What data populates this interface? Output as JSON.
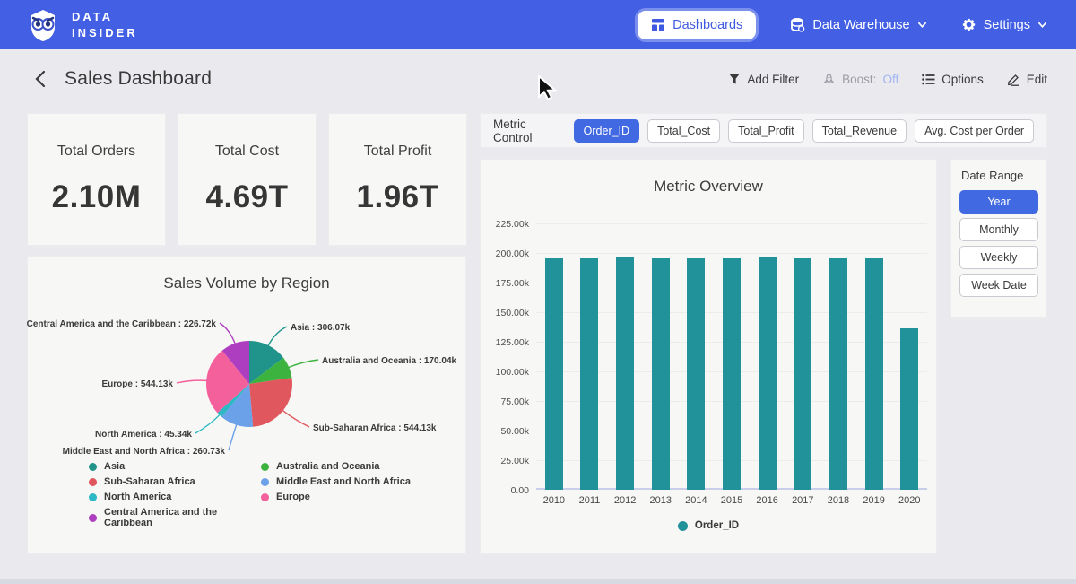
{
  "navbar": {
    "brand_line1": "DATA",
    "brand_line2": "INSIDER",
    "dashboards_label": "Dashboards",
    "data_warehouse_label": "Data Warehouse",
    "settings_label": "Settings"
  },
  "header": {
    "title": "Sales Dashboard",
    "add_filter_label": "Add Filter",
    "boost_label": "Boost:",
    "boost_value": "Off",
    "options_label": "Options",
    "edit_label": "Edit"
  },
  "kpis": [
    {
      "label": "Total Orders",
      "value": "2.10M"
    },
    {
      "label": "Total Cost",
      "value": "4.69T"
    },
    {
      "label": "Total Profit",
      "value": "1.96T"
    }
  ],
  "metric_control": {
    "label": "Metric Control",
    "buttons": [
      {
        "label": "Order_ID",
        "selected": true
      },
      {
        "label": "Total_Cost",
        "selected": false
      },
      {
        "label": "Total_Profit",
        "selected": false
      },
      {
        "label": "Total_Revenue",
        "selected": false
      },
      {
        "label": "Avg. Cost per Order",
        "selected": false
      }
    ]
  },
  "date_range": {
    "label": "Date Range",
    "buttons": [
      {
        "label": "Year",
        "selected": true
      },
      {
        "label": "Monthly",
        "selected": false
      },
      {
        "label": "Weekly",
        "selected": false
      },
      {
        "label": "Week Date",
        "selected": false
      }
    ]
  },
  "colors": {
    "navbar_blue": "#4360e4",
    "accent_blue": "#4169e1",
    "bar_teal": "#21919a",
    "boost_off_blue": "#9fb5f2"
  },
  "chart_data": [
    {
      "type": "pie",
      "title": "Sales Volume by Region",
      "unit": "thousands",
      "slices": [
        {
          "label": "Asia",
          "value": 306.07,
          "display": "306.07k",
          "color": "#20948b"
        },
        {
          "label": "Australia and Oceania",
          "value": 170.04,
          "display": "170.04k",
          "color": "#3bb33e"
        },
        {
          "label": "Sub-Saharan Africa",
          "value": 544.13,
          "display": "544.13k",
          "color": "#e0575e"
        },
        {
          "label": "Middle East and North Africa",
          "value": 260.73,
          "display": "260.73k",
          "color": "#6ba1e8"
        },
        {
          "label": "North America",
          "value": 45.34,
          "display": "45.34k",
          "color": "#2cb8c4"
        },
        {
          "label": "Europe",
          "value": 544.13,
          "display": "544.13k",
          "color": "#f4609c"
        },
        {
          "label": "Central America and the Caribbean",
          "value": 226.72,
          "display": "226.72k",
          "color": "#ae3ec0"
        }
      ],
      "legend_columns": [
        [
          0,
          2,
          4,
          6
        ],
        [
          1,
          3,
          5
        ]
      ]
    },
    {
      "type": "bar",
      "title": "Metric Overview",
      "categories": [
        "2010",
        "2011",
        "2012",
        "2013",
        "2014",
        "2015",
        "2016",
        "2017",
        "2018",
        "2019",
        "2020"
      ],
      "series": [
        {
          "name": "Order_ID",
          "color": "#21919a",
          "values": [
            195.3,
            195.3,
            196.2,
            195.2,
            195.3,
            195.2,
            196.3,
            195.4,
            195.2,
            195.3,
            136.3
          ]
        }
      ],
      "values_unit": "thousands",
      "ylim": [
        0,
        225
      ],
      "yticks": [
        {
          "v": 0,
          "label": "0.00"
        },
        {
          "v": 25,
          "label": "25.00k"
        },
        {
          "v": 50,
          "label": "50.00k"
        },
        {
          "v": 75,
          "label": "75.00k"
        },
        {
          "v": 100,
          "label": "100.00k"
        },
        {
          "v": 125,
          "label": "125.00k"
        },
        {
          "v": 150,
          "label": "150.00k"
        },
        {
          "v": 175,
          "label": "175.00k"
        },
        {
          "v": 200,
          "label": "200.00k"
        },
        {
          "v": 225,
          "label": "225.00k"
        }
      ],
      "legend": [
        "Order_ID"
      ],
      "legend_position": "bottom"
    }
  ]
}
